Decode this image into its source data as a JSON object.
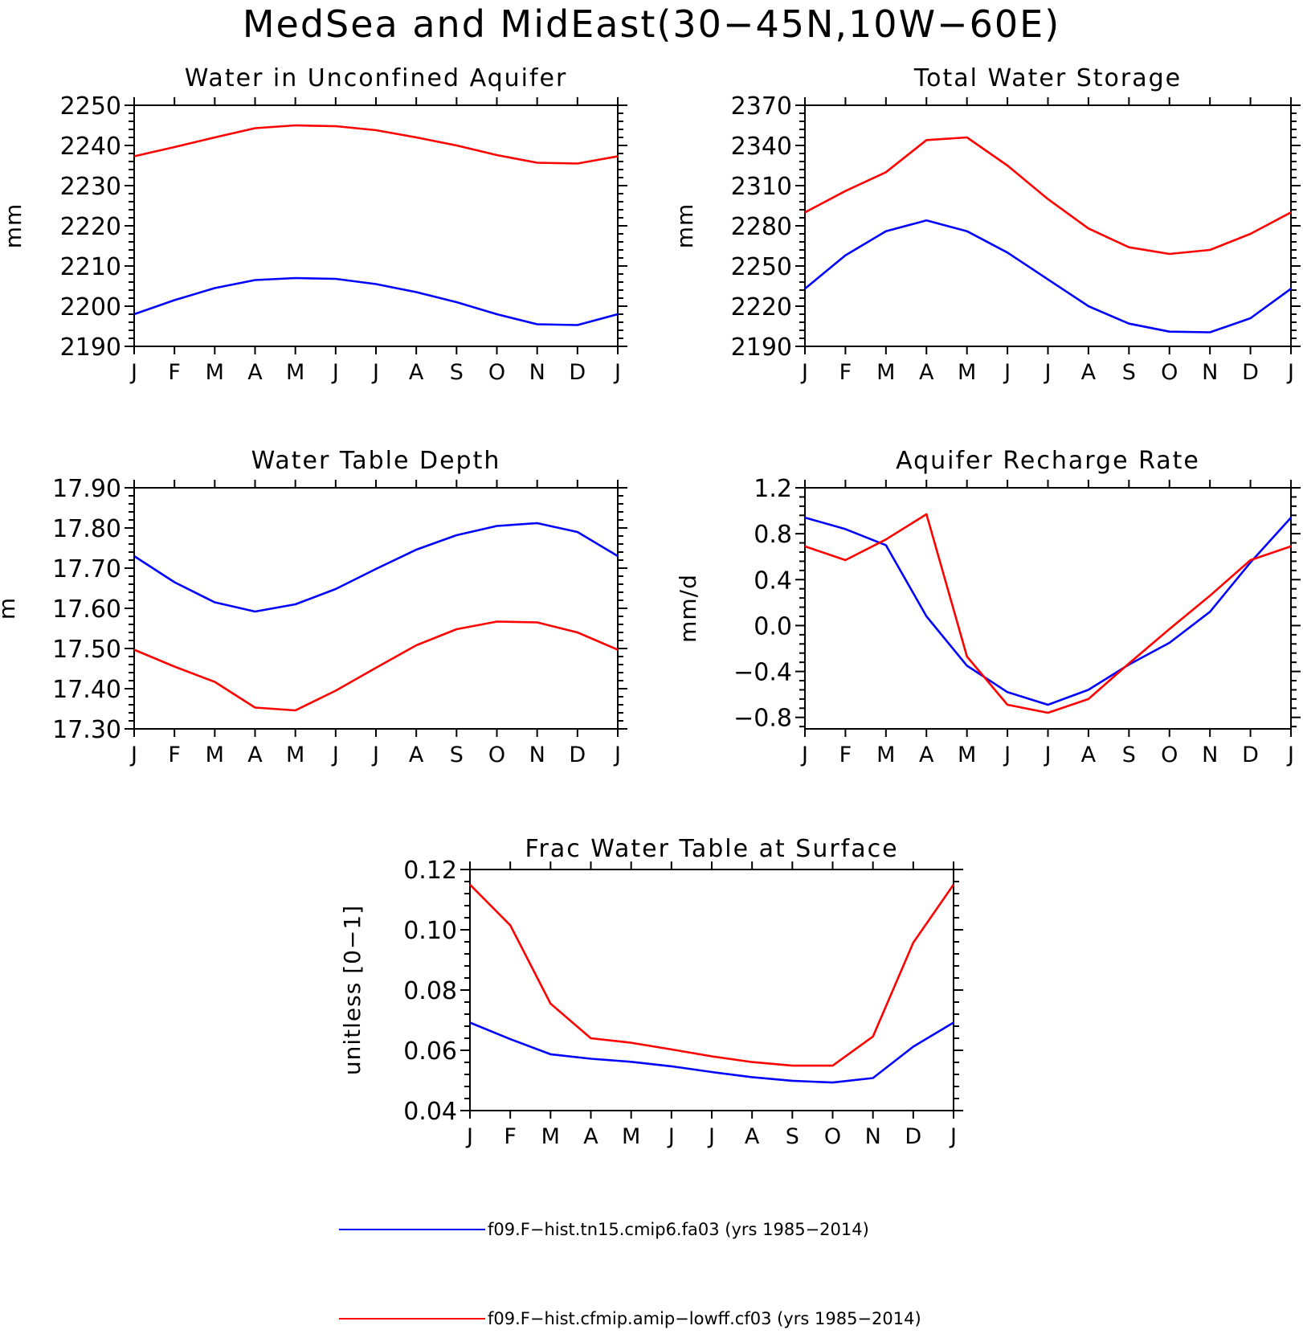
{
  "title": "MedSea and MidEast(30−45N,10W−60E)",
  "colors": {
    "series_1": "#0000ff",
    "series_2": "#ff0000"
  },
  "legend": [
    {
      "label": "f09.F−hist.tn15.cmip6.fa03 (yrs 1985−2014)",
      "color": "#0000ff"
    },
    {
      "label": "f09.F−hist.cfmip.amip−lowff.cf03 (yrs 1985−2014)",
      "color": "#ff0000"
    }
  ],
  "chart_data": [
    {
      "type": "line",
      "title": "Water in Unconfined Aquifer",
      "xlabel": "",
      "ylabel": "mm",
      "categories": [
        "J",
        "F",
        "M",
        "A",
        "M",
        "J",
        "J",
        "A",
        "S",
        "O",
        "N",
        "D",
        "J"
      ],
      "ylim": [
        2190,
        2250
      ],
      "yticks": [
        "2190",
        "2200",
        "2210",
        "2220",
        "2230",
        "2240",
        "2250"
      ],
      "series": [
        {
          "color": "#0000ff",
          "values": [
            2198,
            2201.5,
            2204.5,
            2206.5,
            2207,
            2206.8,
            2205.5,
            2203.5,
            2201,
            2198,
            2195.5,
            2195.3,
            2198
          ]
        },
        {
          "color": "#ff0000",
          "values": [
            2237.3,
            2239.6,
            2242,
            2244.3,
            2245,
            2244.8,
            2243.8,
            2242,
            2240,
            2237.6,
            2235.7,
            2235.5,
            2237.3
          ]
        }
      ]
    },
    {
      "type": "line",
      "title": "Total Water Storage",
      "xlabel": "",
      "ylabel": "mm",
      "categories": [
        "J",
        "F",
        "M",
        "A",
        "M",
        "J",
        "J",
        "A",
        "S",
        "O",
        "N",
        "D",
        "J"
      ],
      "ylim": [
        2190,
        2370
      ],
      "yticks": [
        "2190",
        "2220",
        "2250",
        "2280",
        "2310",
        "2340",
        "2370"
      ],
      "series": [
        {
          "color": "#0000ff",
          "values": [
            2233,
            2258,
            2276,
            2284,
            2276,
            2260,
            2240,
            2220,
            2207,
            2201,
            2200.5,
            2211,
            2233
          ]
        },
        {
          "color": "#ff0000",
          "values": [
            2290,
            2306,
            2320,
            2344,
            2346,
            2325,
            2300,
            2278,
            2264,
            2259,
            2262,
            2274,
            2290
          ]
        }
      ]
    },
    {
      "type": "line",
      "title": "Water Table Depth",
      "xlabel": "",
      "ylabel": "m",
      "categories": [
        "J",
        "F",
        "M",
        "A",
        "M",
        "J",
        "J",
        "A",
        "S",
        "O",
        "N",
        "D",
        "J"
      ],
      "ylim": [
        17.3,
        17.9
      ],
      "yticks": [
        "17.30",
        "17.40",
        "17.50",
        "17.60",
        "17.70",
        "17.80",
        "17.90"
      ],
      "series": [
        {
          "color": "#0000ff",
          "values": [
            17.73,
            17.665,
            17.615,
            17.592,
            17.61,
            17.648,
            17.698,
            17.746,
            17.782,
            17.805,
            17.812,
            17.79,
            17.73
          ]
        },
        {
          "color": "#ff0000",
          "values": [
            17.497,
            17.455,
            17.417,
            17.353,
            17.346,
            17.395,
            17.452,
            17.508,
            17.548,
            17.567,
            17.565,
            17.54,
            17.497
          ]
        }
      ]
    },
    {
      "type": "line",
      "title": "Aquifer Recharge Rate",
      "xlabel": "",
      "ylabel": "mm/d",
      "categories": [
        "J",
        "F",
        "M",
        "A",
        "M",
        "J",
        "J",
        "A",
        "S",
        "O",
        "N",
        "D",
        "J"
      ],
      "ylim": [
        -0.9,
        1.2
      ],
      "yticks": [
        "−0.8",
        "−0.4",
        "0.0",
        "0.4",
        "0.8",
        "1.2"
      ],
      "series": [
        {
          "color": "#0000ff",
          "values": [
            0.94,
            0.84,
            0.7,
            0.08,
            -0.35,
            -0.58,
            -0.69,
            -0.56,
            -0.34,
            -0.15,
            0.12,
            0.55,
            0.94
          ]
        },
        {
          "color": "#ff0000",
          "values": [
            0.69,
            0.57,
            0.75,
            0.97,
            -0.27,
            -0.69,
            -0.76,
            -0.64,
            -0.33,
            -0.03,
            0.26,
            0.57,
            0.69
          ]
        }
      ]
    },
    {
      "type": "line",
      "title": "Frac Water Table at Surface",
      "xlabel": "",
      "ylabel": "unitless [0−1]",
      "categories": [
        "J",
        "F",
        "M",
        "A",
        "M",
        "J",
        "J",
        "A",
        "S",
        "O",
        "N",
        "D",
        "J"
      ],
      "ylim": [
        0.04,
        0.12
      ],
      "yticks": [
        "0.04",
        "0.06",
        "0.08",
        "0.10",
        "0.12"
      ],
      "series": [
        {
          "color": "#0000ff",
          "values": [
            0.0692,
            0.0637,
            0.0587,
            0.0572,
            0.0562,
            0.0547,
            0.0528,
            0.0511,
            0.0499,
            0.0493,
            0.0508,
            0.0612,
            0.0692
          ]
        },
        {
          "color": "#ff0000",
          "values": [
            0.115,
            0.1015,
            0.0755,
            0.064,
            0.0625,
            0.0603,
            0.058,
            0.0561,
            0.0549,
            0.0549,
            0.0646,
            0.0957,
            0.115
          ]
        }
      ]
    }
  ]
}
